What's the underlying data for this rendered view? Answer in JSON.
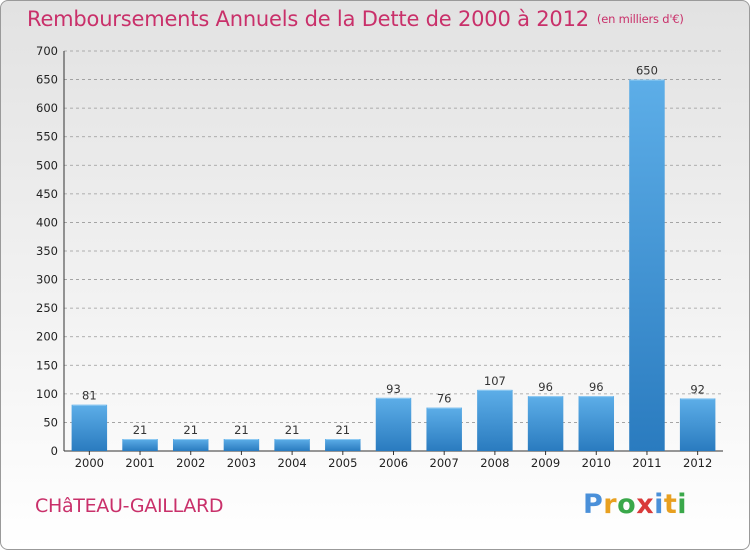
{
  "title": "Remboursements Annuels de la Dette de 2000 à 2012",
  "unit": "(en milliers d'€)",
  "commune": "CHâTEAU-GAILLARD",
  "logo": {
    "letters": [
      {
        "char": "P",
        "color": "#4a90d9"
      },
      {
        "char": "r",
        "color": "#e8a020"
      },
      {
        "char": "o",
        "color": "#3aa84a"
      },
      {
        "char": "x",
        "color": "#d93a3a"
      },
      {
        "char": "i",
        "color": "#4a90d9"
      },
      {
        "char": "t",
        "color": "#e8a020"
      },
      {
        "char": "i",
        "color": "#3aa84a"
      }
    ]
  },
  "colors": {
    "bar_light": "#5daee8",
    "bar_dark": "#2a7bbf",
    "grid": "#999999",
    "accent": "#c9306a"
  },
  "chart_data": {
    "type": "bar",
    "categories": [
      "2000",
      "2001",
      "2002",
      "2003",
      "2004",
      "2005",
      "2006",
      "2007",
      "2008",
      "2009",
      "2010",
      "2011",
      "2012"
    ],
    "values": [
      81,
      21,
      21,
      21,
      21,
      21,
      93,
      76,
      107,
      96,
      96,
      650,
      92
    ],
    "ylim": [
      0,
      700
    ],
    "yticks": [
      0,
      50,
      100,
      150,
      200,
      250,
      300,
      350,
      400,
      450,
      500,
      550,
      600,
      650,
      700
    ],
    "grid": true,
    "data_labels": true
  }
}
